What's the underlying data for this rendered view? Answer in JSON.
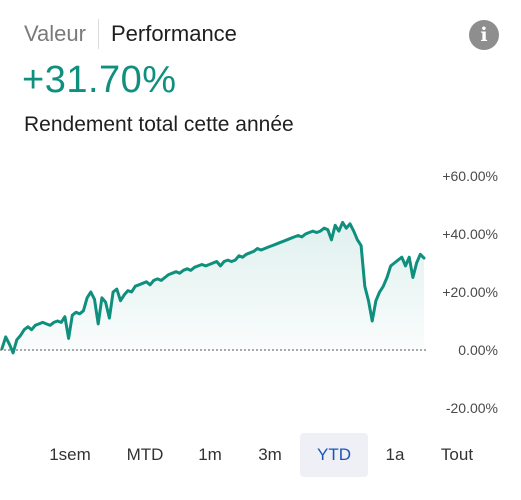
{
  "tabs": [
    {
      "label": "Valeur",
      "active": false
    },
    {
      "label": "Performance",
      "active": true
    }
  ],
  "info_icon": "info-icon",
  "performance": {
    "value": "+31.70%",
    "caption": "Rendement total cette année"
  },
  "colors": {
    "accent": "#0f8f7d",
    "selected_range_bg": "#eef0f5",
    "selected_range_text": "#1a56b8"
  },
  "chart_data": {
    "type": "area",
    "title": "",
    "xlabel": "",
    "ylabel": "",
    "ylim": [
      -20,
      60
    ],
    "yticks": [
      "+60.00%",
      "+40.00%",
      "+20.00%",
      "0.00%",
      "-20.00%"
    ],
    "baseline": 0,
    "series": [
      {
        "values": [
          0.5,
          4.5,
          2,
          -1,
          3.5,
          5,
          7,
          8,
          7,
          8.5,
          9,
          9.5,
          9,
          8.5,
          9.5,
          10,
          9.5,
          11.5,
          4,
          12,
          13,
          12.5,
          13.5,
          18,
          20,
          17.5,
          9,
          18,
          16.5,
          11,
          20,
          21,
          17,
          19,
          20.5,
          20,
          22,
          22.5,
          23,
          23.5,
          22.5,
          24,
          24.5,
          24,
          25,
          26,
          26.5,
          27,
          26.5,
          27.5,
          28,
          27.5,
          28.5,
          29,
          29.5,
          29,
          29.5,
          30,
          30.5,
          29,
          30.5,
          31,
          30.5,
          31,
          32.5,
          32,
          33,
          33.5,
          34,
          35,
          34.5,
          35,
          35.5,
          36,
          36.5,
          37,
          37.5,
          38,
          38.5,
          39,
          39.5,
          39,
          40,
          40.5,
          41,
          40.5,
          41,
          42,
          41.5,
          38,
          43,
          41,
          44,
          42,
          43.5,
          41,
          38,
          36,
          22,
          17,
          10,
          17,
          20,
          22,
          25,
          29,
          30,
          31,
          32,
          29,
          32,
          25,
          30,
          33,
          31.7
        ]
      }
    ]
  },
  "ranges": [
    {
      "label": "1sem",
      "selected": false
    },
    {
      "label": "MTD",
      "selected": false
    },
    {
      "label": "1m",
      "selected": false
    },
    {
      "label": "3m",
      "selected": false
    },
    {
      "label": "YTD",
      "selected": true
    },
    {
      "label": "1a",
      "selected": false
    },
    {
      "label": "Tout",
      "selected": false
    }
  ]
}
